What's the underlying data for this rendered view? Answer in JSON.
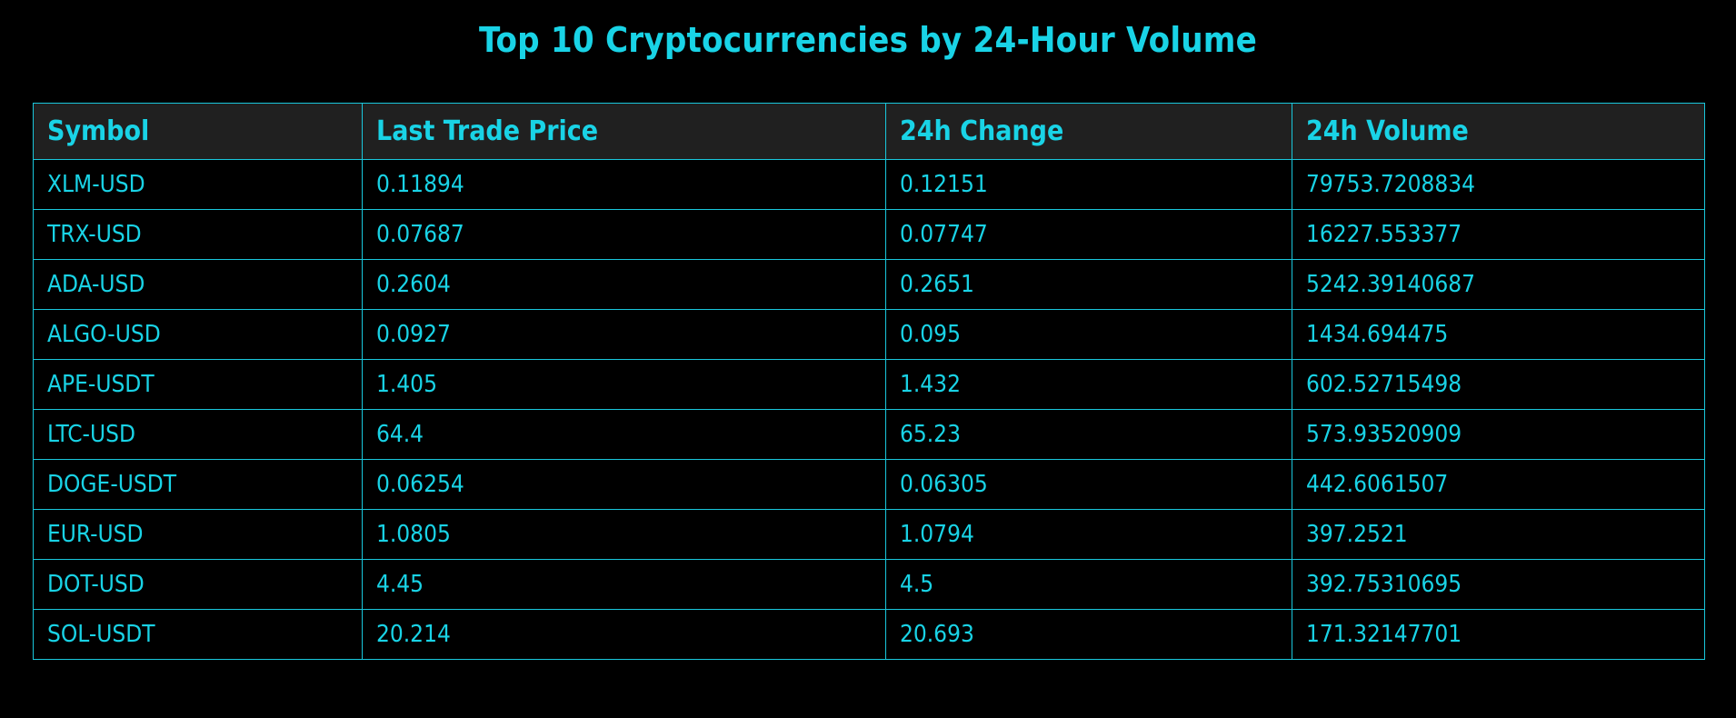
{
  "title": "Top 10 Cryptocurrencies by 24-Hour Volume",
  "colors": {
    "background": "#000000",
    "accent": "#19d3e6",
    "header_background": "#202020",
    "border": "#19c7dc"
  },
  "chart_data": {
    "type": "table",
    "title": "Top 10 Cryptocurrencies by 24-Hour Volume",
    "columns": [
      "Symbol",
      "Last Trade Price",
      "24h Change",
      "24h Volume"
    ],
    "rows": [
      [
        "XLM-USD",
        "0.11894",
        "0.12151",
        "79753.7208834"
      ],
      [
        "TRX-USD",
        "0.07687",
        "0.07747",
        "16227.553377"
      ],
      [
        "ADA-USD",
        "0.2604",
        "0.2651",
        "5242.39140687"
      ],
      [
        "ALGO-USD",
        "0.0927",
        "0.095",
        "1434.694475"
      ],
      [
        "APE-USDT",
        "1.405",
        "1.432",
        "602.52715498"
      ],
      [
        "LTC-USD",
        "64.4",
        "65.23",
        "573.93520909"
      ],
      [
        "DOGE-USDT",
        "0.06254",
        "0.06305",
        "442.6061507"
      ],
      [
        "EUR-USD",
        "1.0805",
        "1.0794",
        "397.2521"
      ],
      [
        "DOT-USD",
        "4.45",
        "4.5",
        "392.75310695"
      ],
      [
        "SOL-USDT",
        "20.214",
        "20.693",
        "171.32147701"
      ]
    ]
  }
}
